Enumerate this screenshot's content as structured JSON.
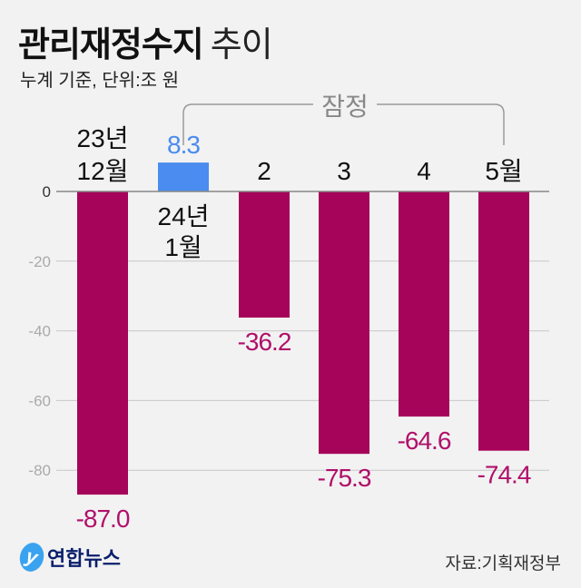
{
  "title_bold": "관리재정수지",
  "title_light": "추이",
  "subtitle": "누계 기준, 단위:조 원",
  "provisional_label": "잠정",
  "source": "자료:기획재정부",
  "logo_text": "연합뉴스",
  "colors": {
    "negative": "#a6035a",
    "positive": "#4a8cef",
    "negative_label": "#b0106a",
    "positive_label": "#4a8cef",
    "grid": "#c8c8c8",
    "axis": "#888888"
  },
  "chart_data": {
    "type": "bar",
    "title": "관리재정수지 추이",
    "ylabel": "조 원",
    "categories": [
      [
        "23년",
        "12월"
      ],
      [
        "24년",
        "1월"
      ],
      [
        "2"
      ],
      [
        "3"
      ],
      [
        "4"
      ],
      [
        "5월"
      ]
    ],
    "values": [
      -87.0,
      8.3,
      -36.2,
      -75.3,
      -64.6,
      -74.4
    ],
    "value_labels": [
      "-87.0",
      "8.3",
      "-36.2",
      "-75.3",
      "-64.6",
      "-74.4"
    ],
    "yticks": [
      0,
      -20,
      -40,
      -60,
      -80
    ],
    "ytick_labels": [
      "0",
      "-20",
      "-40",
      "-60",
      "-80"
    ],
    "ylim": [
      -90,
      10
    ],
    "grid": true,
    "annotation": "잠정 (24년 1월~5월)"
  }
}
